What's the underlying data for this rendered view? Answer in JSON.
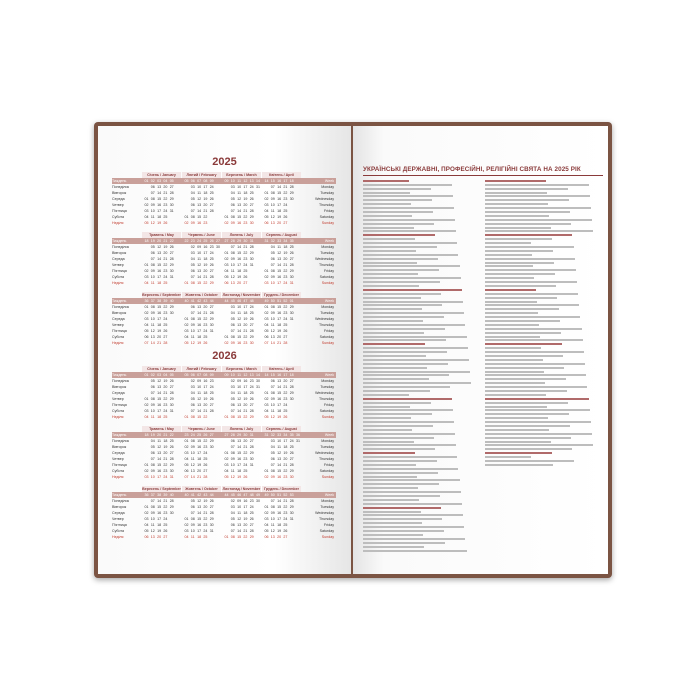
{
  "years": [
    2025,
    2026
  ],
  "months": [
    "Січень / January",
    "Лютий / February",
    "Березень / March",
    "Квітень / April",
    "Травень / May",
    "Червень / June",
    "Липень / July",
    "Серпень / August",
    "Вересень / September",
    "Жовтень / October",
    "Листопад / November",
    "Грудень / December"
  ],
  "week_label_ua": "Тиждень",
  "week_label_en": "Week",
  "days_ua": [
    "Понеділок",
    "Вівторок",
    "Середа",
    "Четвер",
    "П'ятниця",
    "Субота",
    "Неділя"
  ],
  "days_en": [
    "Monday",
    "Tuesday",
    "Wednesday",
    "Thursday",
    "Friday",
    "Saturday",
    "Sunday"
  ],
  "right_page": {
    "title": "УКРАЇНСЬКІ ДЕРЖАВНІ, ПРОФЕСІЙНІ, РЕЛІГІЙНІ СВЯТА НА 2025 РІК"
  },
  "colors": {
    "cover": "#7b5443",
    "accent": "#8a3a3a",
    "week_row": "#c9a09a"
  }
}
